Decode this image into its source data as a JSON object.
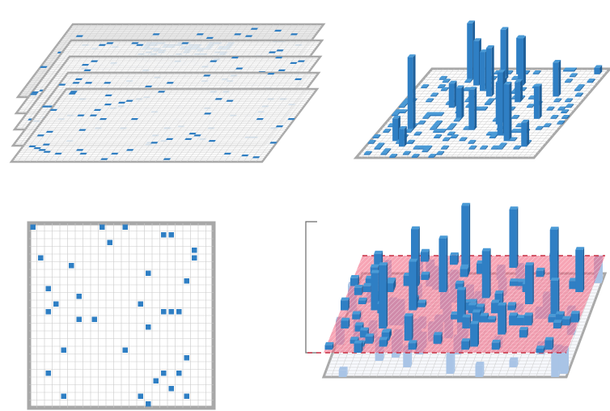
{
  "figure": {
    "panels": [
      {
        "id": "stacked-layers",
        "kind": "stacked-sparse-grids",
        "layer_count": 5
      },
      {
        "id": "bar-matrix",
        "kind": "3d-bar-grid"
      },
      {
        "id": "flat-grid",
        "kind": "2d-sparse-grid",
        "grid_size": 24
      },
      {
        "id": "threshold-plane",
        "kind": "3d-bar-grid-with-plane",
        "has_scale_bracket": true
      }
    ]
  },
  "colors": {
    "cell": "#2f7fc4",
    "cell_top": "#4a9ad6",
    "cell_side": "#1f5f99",
    "grid_line": "#c9c9c9",
    "frame": "#a8a8a8",
    "plane_fill": "#f05a78",
    "plane_dash": "#c62f42",
    "faded_bar": "#a9c4e6",
    "bracket": "#6a6a6a"
  }
}
